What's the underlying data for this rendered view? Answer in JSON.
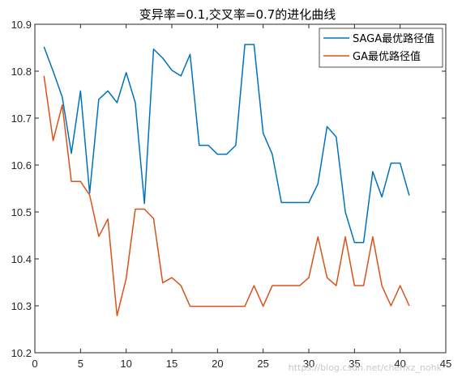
{
  "chart_data": {
    "type": "line",
    "title": "变异率=0.1,交叉率=0.7的进化曲线",
    "xlabel": "",
    "ylabel": "",
    "xlim": [
      0,
      45
    ],
    "ylim": [
      10.2,
      10.9
    ],
    "xticks": [
      "0",
      "5",
      "10",
      "15",
      "20",
      "25",
      "30",
      "35",
      "40",
      "45"
    ],
    "yticks": [
      "10.2",
      "10.3",
      "10.4",
      "10.5",
      "10.6",
      "10.7",
      "10.8",
      "10.9"
    ],
    "grid": false,
    "legend_position": "top-right",
    "x": [
      1,
      2,
      3,
      4,
      5,
      6,
      7,
      8,
      9,
      10,
      11,
      12,
      13,
      14,
      15,
      16,
      17,
      18,
      19,
      20,
      21,
      22,
      23,
      24,
      25,
      26,
      27,
      28,
      29,
      30,
      31,
      32,
      33,
      34,
      35,
      36,
      37,
      38,
      39,
      40,
      41
    ],
    "series": [
      {
        "name": "SAGA最优路径值",
        "color": "#0072BD",
        "values": [
          10.852,
          10.8,
          10.745,
          10.625,
          10.758,
          10.54,
          10.74,
          10.758,
          10.733,
          10.797,
          10.733,
          10.518,
          10.847,
          10.828,
          10.802,
          10.79,
          10.836,
          10.642,
          10.642,
          10.623,
          10.623,
          10.642,
          10.857,
          10.857,
          10.668,
          10.623,
          10.52,
          10.52,
          10.52,
          10.52,
          10.56,
          10.682,
          10.66,
          10.5,
          10.435,
          10.435,
          10.586,
          10.532,
          10.604,
          10.604,
          10.535
        ]
      },
      {
        "name": "GA最优路径值",
        "color": "#D95319",
        "values": [
          10.79,
          10.652,
          10.728,
          10.565,
          10.565,
          10.536,
          10.448,
          10.485,
          10.279,
          10.358,
          10.506,
          10.506,
          10.486,
          10.349,
          10.36,
          10.343,
          10.299,
          10.299,
          10.299,
          10.299,
          10.299,
          10.299,
          10.299,
          10.343,
          10.299,
          10.343,
          10.343,
          10.343,
          10.343,
          10.36,
          10.447,
          10.36,
          10.343,
          10.447,
          10.343,
          10.343,
          10.447,
          10.343,
          10.3,
          10.343,
          10.3
        ]
      }
    ]
  },
  "watermark": "https://blog.csdn.net/chenxz_nohk"
}
